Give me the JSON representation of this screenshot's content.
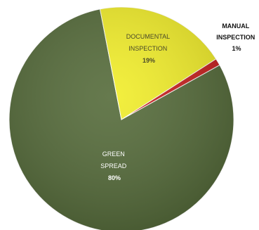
{
  "chart_data": {
    "type": "pie",
    "title": "",
    "slices": [
      {
        "label_lines": [
          "GREEN",
          "SPREAD"
        ],
        "percent_text": "80%",
        "value": 80,
        "color": "#556b3a",
        "label_color": "#ffffff"
      },
      {
        "label_lines": [
          "DOCUMENTAL",
          "INSPECTION"
        ],
        "percent_text": "19%",
        "value": 19,
        "color": "#f2ee2a",
        "label_color": "#4a4a2a"
      },
      {
        "label_lines": [
          "MANUAL",
          "INSPECTION"
        ],
        "percent_text": "1%",
        "value": 1,
        "color": "#c8201e",
        "label_color": "#111111"
      }
    ],
    "start_angle_deg": 61,
    "legend": "none",
    "grid": false
  }
}
